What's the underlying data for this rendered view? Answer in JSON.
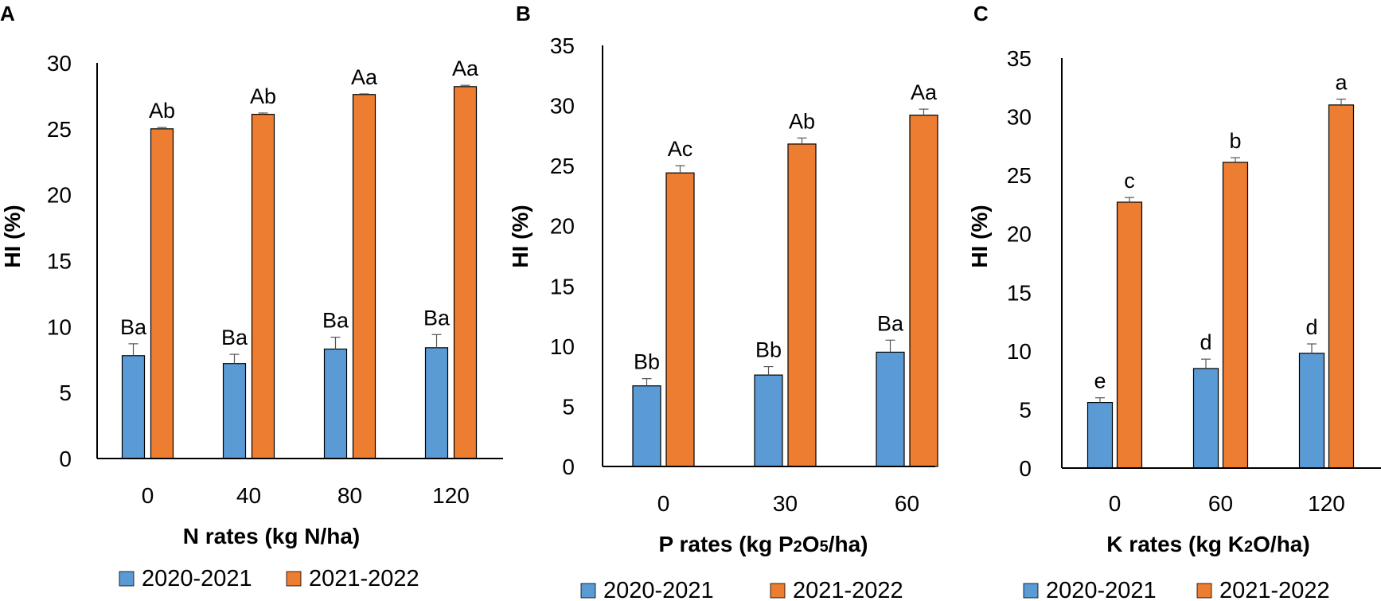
{
  "colors": {
    "series1": "#5B9BD5",
    "series2": "#ED7D31",
    "axis": "#000000"
  },
  "legend": [
    "2020-2021",
    "2021-2022"
  ],
  "chart_data": [
    {
      "panel": "A",
      "type": "bar",
      "title": "",
      "xlabel": "N rates (kg N/ha)",
      "ylabel": "HI (%)",
      "ylim": [
        0,
        30
      ],
      "ytick_step": 5,
      "categories": [
        "0",
        "40",
        "80",
        "120"
      ],
      "series": [
        {
          "name": "2020-2021",
          "values": [
            7.8,
            7.2,
            8.3,
            8.4
          ],
          "errors": [
            0.9,
            0.7,
            0.9,
            1.0
          ],
          "labels": [
            "Ba",
            "Ba",
            "Ba",
            "Ba"
          ]
        },
        {
          "name": "2021-2022",
          "values": [
            25.0,
            26.1,
            27.6,
            28.2
          ],
          "errors": [
            0.1,
            0.1,
            0.05,
            0.1
          ],
          "labels": [
            "Ab",
            "Ab",
            "Aa",
            "Aa"
          ]
        }
      ]
    },
    {
      "panel": "B",
      "type": "bar",
      "title": "",
      "xlabel": "P rates (kg P2O5/ha)",
      "ylabel": "HI (%)",
      "ylim": [
        0,
        35
      ],
      "ytick_step": 5,
      "categories": [
        "0",
        "30",
        "60"
      ],
      "series": [
        {
          "name": "2020-2021",
          "values": [
            6.7,
            7.6,
            9.5
          ],
          "errors": [
            0.6,
            0.7,
            1.0
          ],
          "labels": [
            "Bb",
            "Bb",
            "Ba"
          ]
        },
        {
          "name": "2021-2022",
          "values": [
            24.4,
            26.8,
            29.2
          ],
          "errors": [
            0.6,
            0.5,
            0.5
          ],
          "labels": [
            "Ac",
            "Ab",
            "Aa"
          ]
        }
      ]
    },
    {
      "panel": "C",
      "type": "bar",
      "title": "",
      "xlabel": "K rates (kg K2O/ha)",
      "ylabel": "HI (%)",
      "ylim": [
        0,
        35
      ],
      "ytick_step": 5,
      "categories": [
        "0",
        "60",
        "120"
      ],
      "series": [
        {
          "name": "2020-2021",
          "values": [
            5.6,
            8.5,
            9.8
          ],
          "errors": [
            0.4,
            0.8,
            0.8
          ],
          "labels": [
            "e",
            "d",
            "d"
          ]
        },
        {
          "name": "2021-2022",
          "values": [
            22.7,
            26.1,
            31.0
          ],
          "errors": [
            0.4,
            0.4,
            0.5
          ],
          "labels": [
            "c",
            "b",
            "a"
          ]
        }
      ]
    }
  ]
}
